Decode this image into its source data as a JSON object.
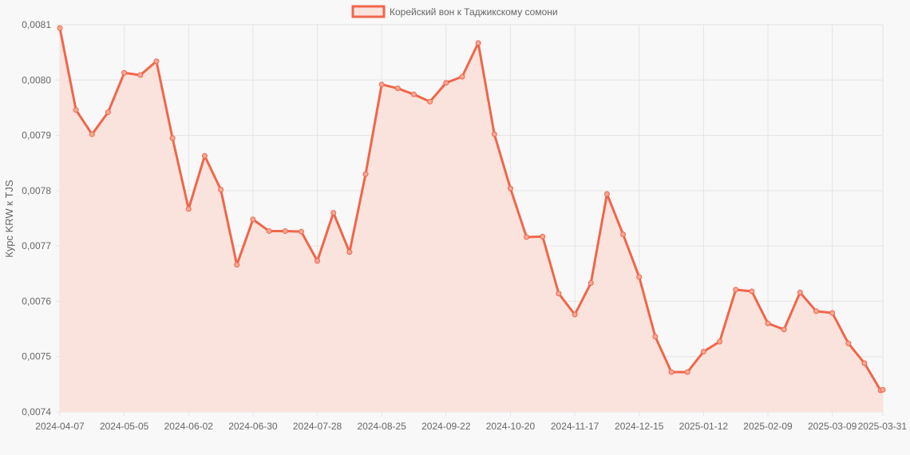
{
  "chart_data": {
    "type": "line",
    "legend": {
      "label": "Корейский вон к Таджикскому сомони",
      "position": "top-center"
    },
    "ylabel": "Курс KRW к TJS",
    "xlabel": "",
    "ylim": [
      0.0074,
      0.0081
    ],
    "y_ticks": [
      "0,0074",
      "0,0075",
      "0,0076",
      "0,0077",
      "0,0078",
      "0,0079",
      "0,0080",
      "0,0081"
    ],
    "x_tick_labels": [
      "2024-04-07",
      "2024-05-05",
      "2024-06-02",
      "2024-06-30",
      "2024-07-28",
      "2024-08-25",
      "2024-09-22",
      "2024-10-20",
      "2024-11-17",
      "2024-12-15",
      "2025-01-12",
      "2025-02-09",
      "2025-03-09",
      "2025-03-31"
    ],
    "grid": true,
    "colors": {
      "line": "#f0664a",
      "fill": "#fbe3dd",
      "point_fill": "#f6a896"
    },
    "series": [
      {
        "name": "Корейский вон к Таджикскому сомони",
        "x": [
          "2024-04-07",
          "2024-04-14",
          "2024-04-21",
          "2024-04-28",
          "2024-05-05",
          "2024-05-12",
          "2024-05-19",
          "2024-05-26",
          "2024-06-02",
          "2024-06-09",
          "2024-06-16",
          "2024-06-23",
          "2024-06-30",
          "2024-07-07",
          "2024-07-14",
          "2024-07-21",
          "2024-07-28",
          "2024-08-04",
          "2024-08-11",
          "2024-08-18",
          "2024-08-25",
          "2024-09-01",
          "2024-09-08",
          "2024-09-15",
          "2024-09-22",
          "2024-09-29",
          "2024-10-06",
          "2024-10-13",
          "2024-10-20",
          "2024-10-27",
          "2024-11-03",
          "2024-11-10",
          "2024-11-17",
          "2024-11-24",
          "2024-12-01",
          "2024-12-08",
          "2024-12-15",
          "2024-12-22",
          "2024-12-29",
          "2025-01-05",
          "2025-01-12",
          "2025-01-19",
          "2025-01-26",
          "2025-02-02",
          "2025-02-09",
          "2025-02-16",
          "2025-02-23",
          "2025-03-02",
          "2025-03-09",
          "2025-03-16",
          "2025-03-23",
          "2025-03-30",
          "2025-03-31"
        ],
        "values": [
          0.008094,
          0.007946,
          0.007902,
          0.007942,
          0.008013,
          0.008009,
          0.008034,
          0.007895,
          0.007767,
          0.007863,
          0.007802,
          0.007666,
          0.007748,
          0.007727,
          0.007727,
          0.007726,
          0.007673,
          0.00776,
          0.007689,
          0.00783,
          0.007992,
          0.007985,
          0.007974,
          0.007961,
          0.007995,
          0.008006,
          0.008067,
          0.007902,
          0.007804,
          0.007716,
          0.007717,
          0.007614,
          0.007576,
          0.007633,
          0.007794,
          0.007721,
          0.007644,
          0.007536,
          0.007472,
          0.007472,
          0.007509,
          0.007527,
          0.007621,
          0.007618,
          0.00756,
          0.007549,
          0.007616,
          0.007582,
          0.007579,
          0.007524,
          0.007488,
          0.007439,
          0.00744
        ]
      }
    ]
  }
}
